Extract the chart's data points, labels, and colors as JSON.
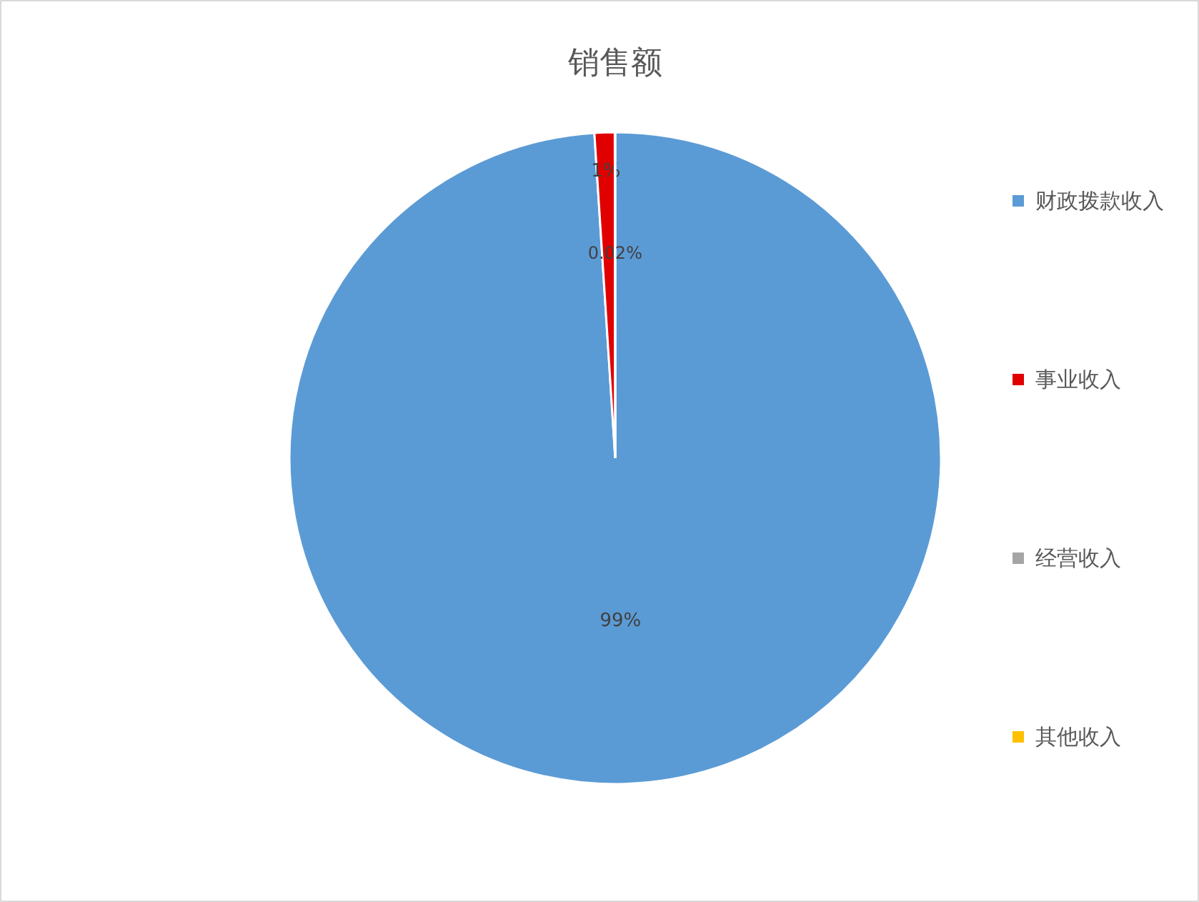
{
  "chart_data": {
    "type": "pie",
    "title": "销售额",
    "categories": [
      "财政拨款收入",
      "事业收入",
      "经营收入",
      "其他收入"
    ],
    "values": [
      99,
      1,
      0.02,
      0
    ],
    "colors": [
      "#5b9bd5",
      "#e00000",
      "#a5a5a5",
      "#ffc000"
    ],
    "value_labels": [
      "99%",
      "1%",
      "0.02%",
      null
    ],
    "legend": "right"
  }
}
